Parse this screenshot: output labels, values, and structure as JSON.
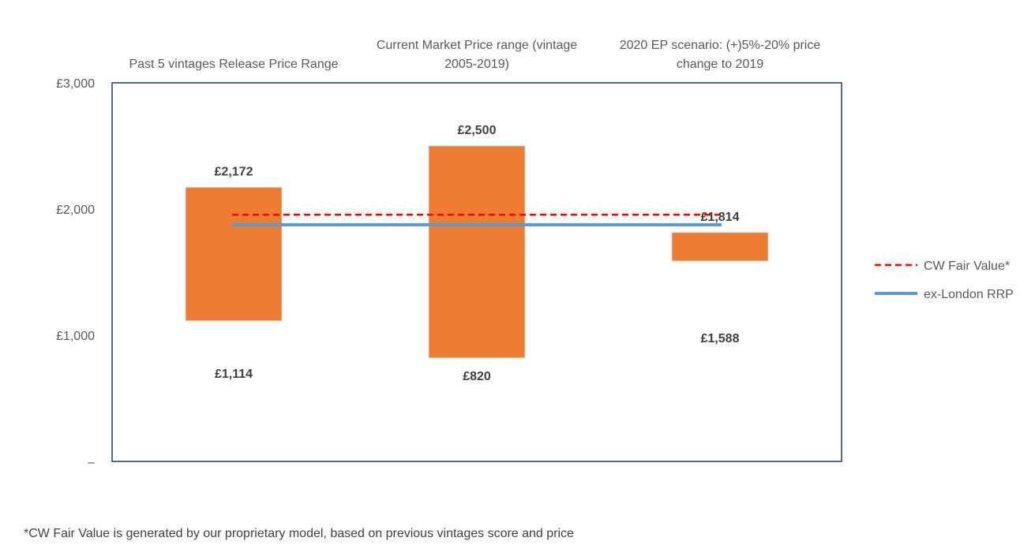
{
  "chart_data": {
    "type": "bar",
    "subtype": "floating-range-with-reference-lines",
    "categories": [
      "Past 5 vintages Release Price Range",
      "Current Market Price range (vintage 2005-2019)",
      "2020 EP scenario: (+)5%-20% price change to 2019"
    ],
    "category_label_lines": [
      [
        "Past 5 vintages Release Price Range"
      ],
      [
        "Current Market Price range (vintage",
        "2005-2019)"
      ],
      [
        "2020 EP scenario: (+)5%-20% price",
        "change to 2019"
      ]
    ],
    "ranges": [
      {
        "low": 1114,
        "high": 2172,
        "low_label": "£1,114",
        "high_label": "£2,172"
      },
      {
        "low": 820,
        "high": 2500,
        "low_label": "£820",
        "high_label": "£2,500"
      },
      {
        "low": 1588,
        "high": 1814,
        "low_label": "£1,588",
        "high_label": "£1,814"
      }
    ],
    "reference_lines": [
      {
        "name": "CW Fair Value*",
        "value": 1955,
        "style": "dashed",
        "color": "#ff0000"
      },
      {
        "name": "ex-London RRP",
        "value": 1875,
        "style": "solid",
        "color": "#5b9bd5"
      }
    ],
    "bar_color": "#ed7d31",
    "ylim": [
      0,
      3000
    ],
    "yticks": [
      {
        "value": 0,
        "label": "–"
      },
      {
        "value": 1000,
        "label": "£1,000"
      },
      {
        "value": 2000,
        "label": "£2,000"
      },
      {
        "value": 3000,
        "label": "£3,000"
      }
    ],
    "grid": false,
    "legend_position": "right"
  },
  "footnote": "*CW Fair Value is generated by our proprietary model, based on previous vintages score and price"
}
